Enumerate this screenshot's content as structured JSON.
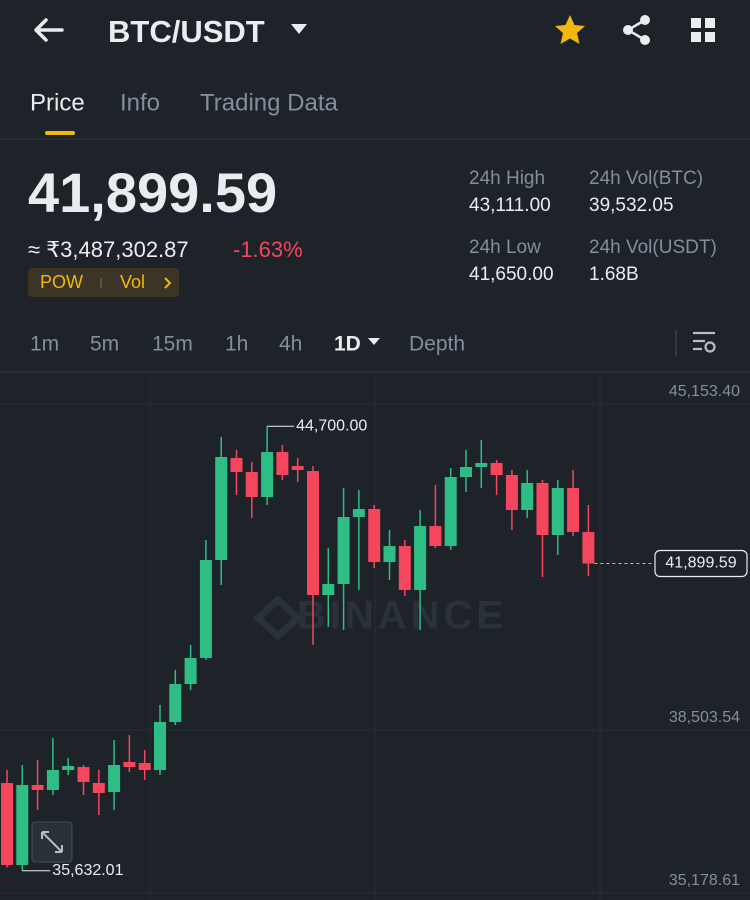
{
  "header": {
    "title": "BTC/USDT"
  },
  "tabs": [
    "Price",
    "Info",
    "Trading Data"
  ],
  "price": {
    "last": "41,899.59",
    "fiat": "≈ ₹3,487,302.87",
    "change": "-1.63%",
    "tags": [
      "POW",
      "Vol"
    ]
  },
  "stats": [
    {
      "label": "24h High",
      "value": "43,111.00"
    },
    {
      "label": "24h Vol(BTC)",
      "value": "39,532.05"
    },
    {
      "label": "24h Low",
      "value": "41,650.00"
    },
    {
      "label": "24h Vol(USDT)",
      "value": "1.68B"
    }
  ],
  "intervals": [
    "1m",
    "5m",
    "15m",
    "1h",
    "4h",
    "1D",
    "Depth"
  ],
  "chart_data": {
    "type": "candlestick",
    "watermark": "BINANCE",
    "up_color": "#2ebd85",
    "down_color": "#f6465d",
    "ylim": [
      35035,
      45806
    ],
    "yticks": [
      {
        "value": 45153.4,
        "label": "45,153.40"
      },
      {
        "value": 38503.54,
        "label": "38,503.54"
      },
      {
        "value": 35178.61,
        "label": "35,178.61"
      }
    ],
    "grid": true,
    "last_price": {
      "value": 41899.59,
      "label": "41,899.59"
    },
    "high_marker": {
      "value": 44700,
      "label": "44,700.00"
    },
    "low_marker": {
      "value": 35632.01,
      "label": "35,632.01"
    },
    "candles": [
      {
        "open": 37422,
        "high": 37687,
        "low": 35700,
        "close": 35749
      },
      {
        "open": 35749,
        "high": 37789,
        "low": 35632.01,
        "close": 37381
      },
      {
        "open": 37381,
        "high": 37891,
        "low": 36871,
        "close": 37279
      },
      {
        "open": 37279,
        "high": 38340,
        "low": 37177,
        "close": 37687
      },
      {
        "open": 37687,
        "high": 37932,
        "low": 37585,
        "close": 37768
      },
      {
        "open": 37748,
        "high": 37789,
        "low": 37177,
        "close": 37442
      },
      {
        "open": 37422,
        "high": 37687,
        "low": 36769,
        "close": 37218
      },
      {
        "open": 37238,
        "high": 38299,
        "low": 36871,
        "close": 37789
      },
      {
        "open": 37850,
        "high": 38401,
        "low": 37646,
        "close": 37748
      },
      {
        "open": 37830,
        "high": 38095,
        "low": 37483,
        "close": 37687
      },
      {
        "open": 37687,
        "high": 39013,
        "low": 37585,
        "close": 38666
      },
      {
        "open": 38666,
        "high": 39727,
        "low": 38605,
        "close": 39441
      },
      {
        "open": 39441,
        "high": 40237,
        "low": 39319,
        "close": 39972
      },
      {
        "open": 39972,
        "high": 42379,
        "low": 39931,
        "close": 41971
      },
      {
        "open": 41971,
        "high": 44480,
        "low": 41461,
        "close": 44072
      },
      {
        "open": 44052,
        "high": 44215,
        "low": 43297,
        "close": 43766
      },
      {
        "open": 43766,
        "high": 43970,
        "low": 42828,
        "close": 43256
      },
      {
        "open": 43256,
        "high": 44700,
        "low": 43093,
        "close": 44174
      },
      {
        "open": 44174,
        "high": 44317,
        "low": 43603,
        "close": 43705
      },
      {
        "open": 43888,
        "high": 44052,
        "low": 43562,
        "close": 43807
      },
      {
        "open": 43786,
        "high": 43888,
        "low": 40237,
        "close": 41257
      },
      {
        "open": 41257,
        "high": 42216,
        "low": 40604,
        "close": 41481
      },
      {
        "open": 41481,
        "high": 43440,
        "low": 40543,
        "close": 42848
      },
      {
        "open": 42848,
        "high": 43399,
        "low": 41359,
        "close": 43011
      },
      {
        "open": 43011,
        "high": 43093,
        "low": 41808,
        "close": 41930
      },
      {
        "open": 41930,
        "high": 42583,
        "low": 41563,
        "close": 42256
      },
      {
        "open": 42256,
        "high": 42379,
        "low": 41236,
        "close": 41359
      },
      {
        "open": 41359,
        "high": 42991,
        "low": 40543,
        "close": 42664
      },
      {
        "open": 42664,
        "high": 43501,
        "low": 42216,
        "close": 42256
      },
      {
        "open": 42256,
        "high": 43848,
        "low": 42175,
        "close": 43664
      },
      {
        "open": 43664,
        "high": 44215,
        "low": 43358,
        "close": 43868
      },
      {
        "open": 43868,
        "high": 44419,
        "low": 43440,
        "close": 43950
      },
      {
        "open": 43950,
        "high": 44011,
        "low": 43297,
        "close": 43705
      },
      {
        "open": 43705,
        "high": 43807,
        "low": 42583,
        "close": 42991
      },
      {
        "open": 42991,
        "high": 43807,
        "low": 42828,
        "close": 43542
      },
      {
        "open": 43542,
        "high": 43603,
        "low": 41624,
        "close": 42481
      },
      {
        "open": 42481,
        "high": 43603,
        "low": 42073,
        "close": 43440
      },
      {
        "open": 43440,
        "high": 43807,
        "low": 42460,
        "close": 42542
      },
      {
        "open": 42542,
        "high": 43093,
        "low": 41644,
        "close": 41899.59
      }
    ]
  }
}
